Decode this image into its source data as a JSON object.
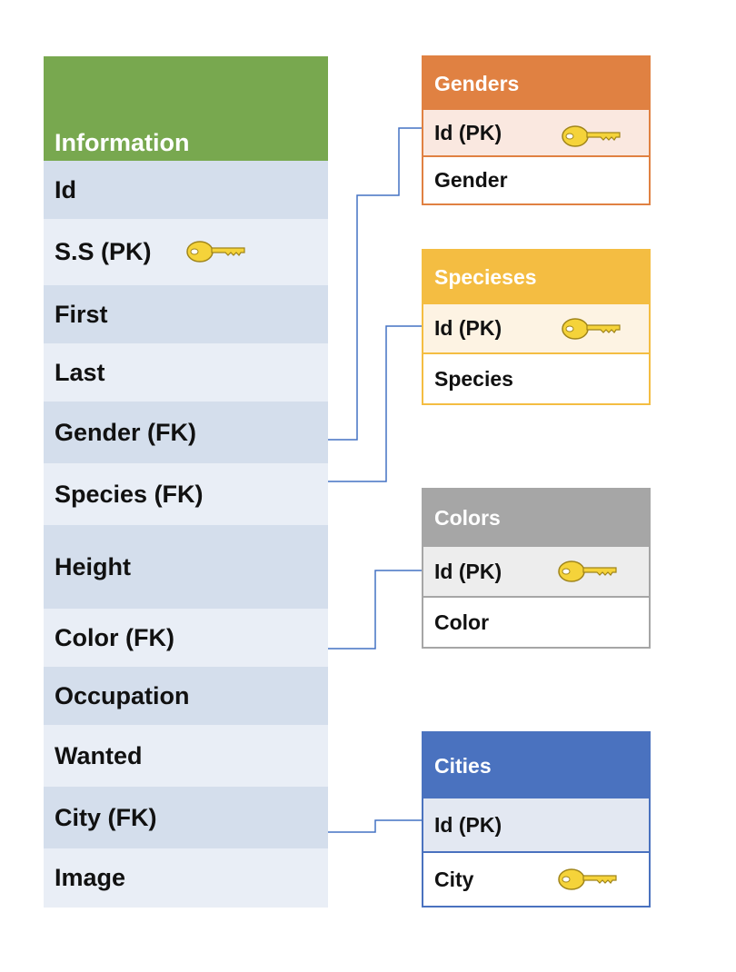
{
  "colors": {
    "information_header": "#78a84f",
    "genders_header": "#e08142",
    "specieses_header": "#f4bd42",
    "colors_header": "#a6a6a6",
    "cities_header": "#4a72bf",
    "row_dark": "#d4deec",
    "row_light": "#e9eef6",
    "connector": "#4472c4"
  },
  "information": {
    "title": "Information",
    "rows": [
      "Id",
      "S.S  (PK)",
      "First",
      "Last",
      "Gender (FK)",
      "Species (FK)",
      "Height",
      "Color (FK)",
      "Occupation",
      "Wanted",
      "City (FK)",
      "Image"
    ]
  },
  "genders": {
    "title": "Genders",
    "rows": [
      "Id (PK)",
      "Gender"
    ]
  },
  "specieses": {
    "title": "Specieses",
    "rows": [
      "Id (PK)",
      "Species"
    ]
  },
  "colors_table": {
    "title": "Colors",
    "rows": [
      "Id (PK)",
      "Color"
    ]
  },
  "cities": {
    "title": "Cities",
    "rows": [
      "Id (PK)",
      "City"
    ]
  },
  "icons": {
    "key": "key-icon"
  }
}
